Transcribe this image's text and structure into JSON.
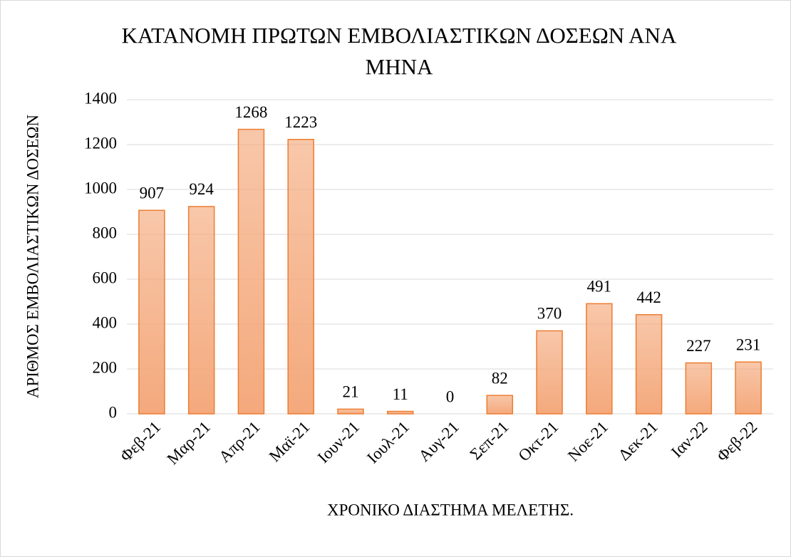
{
  "chart_data": {
    "type": "bar",
    "title": "ΚΑΤΑΝΟΜΗ ΠΡΩΤΩΝ ΕΜΒΟΛΙΑΣΤΙΚΩΝ ΔΟΣΕΩΝ ΑΝΑ ΜΗΝΑ",
    "xlabel": "ΧΡΟΝΙΚΟ ΔΙΑΣΤΗΜΑ ΜΕΛΕΤΗΣ.",
    "ylabel": "ΑΡΙΘΜΟΣ ΕΜΒΟΛΙΑΣΤΙΚΩΝ ΔΟΣΕΩΝ",
    "categories": [
      "Φεβ-21",
      "Μαρ-21",
      "Απρ-21",
      "Μαϊ-21",
      "Ιουν-21",
      "Ιουλ-21",
      "Αυγ-21",
      "Σεπ-21",
      "Οκτ-21",
      "Νοε-21",
      "Δεκ-21",
      "Ιαν-22",
      "Φεβ-22"
    ],
    "values": [
      907,
      924,
      1268,
      1223,
      21,
      11,
      0,
      82,
      370,
      491,
      442,
      227,
      231
    ],
    "color": "#f4a97c",
    "edgecolor": "#ed7d31",
    "ylim": [
      0,
      1400
    ],
    "yticks": [
      0,
      200,
      400,
      600,
      800,
      1000,
      1200,
      1400
    ],
    "grid": true
  }
}
